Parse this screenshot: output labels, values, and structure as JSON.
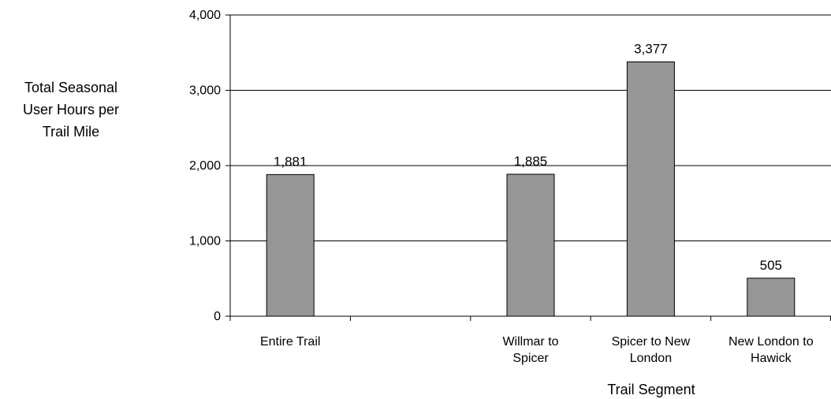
{
  "chart_data": {
    "type": "bar",
    "categories": [
      "Entire Trail",
      "",
      "Willmar to Spicer",
      "Spicer to New London",
      "New London to Hawick"
    ],
    "category_lines": [
      [
        "Entire Trail"
      ],
      [],
      [
        "Willmar to",
        "Spicer"
      ],
      [
        "Spicer to New",
        "London"
      ],
      [
        "New London to",
        "Hawick"
      ]
    ],
    "values": [
      1881,
      null,
      1885,
      3377,
      505
    ],
    "value_labels": [
      "1,881",
      "",
      "1,885",
      "3,377",
      "505"
    ],
    "ylim": [
      0,
      4000
    ],
    "yticks": [
      0,
      1000,
      2000,
      3000,
      4000
    ],
    "ytick_labels": [
      "0",
      "1,000",
      "2,000",
      "3,000",
      "4,000"
    ],
    "ylabel_lines": [
      "Total Seasonal",
      "User Hours per",
      "Trail Mile"
    ],
    "xlabel": "Trail Segment",
    "grid": true,
    "bar_color": "#969696",
    "bar_edge_color": "#000000"
  }
}
